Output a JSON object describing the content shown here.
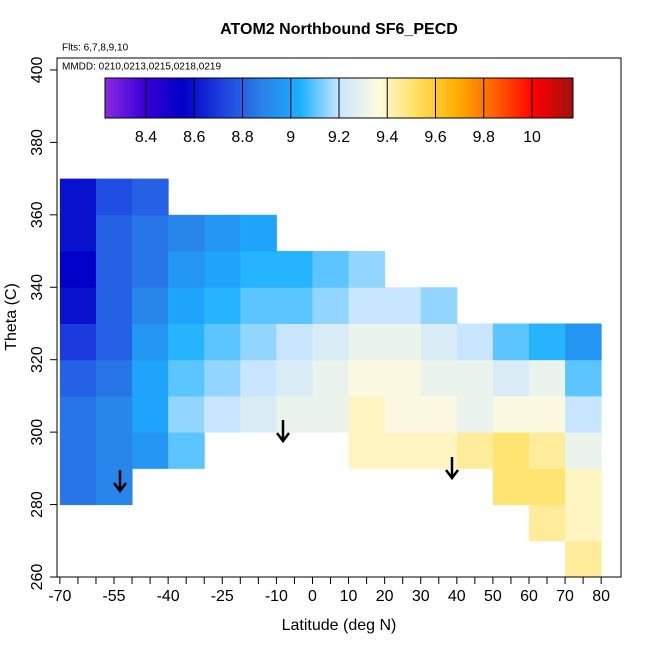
{
  "chart_data": {
    "type": "heatmap",
    "title": "ATOM2 Northbound SF6_PECD",
    "annotations": [
      "Flts: 6,7,8,9,10",
      "MMDD: 0210,0213,0215,0218,0219"
    ],
    "xlabel": "Latitude (deg N)",
    "ylabel": "Theta (C)",
    "xlim": [
      -70.8,
      85.5
    ],
    "ylim": [
      260,
      403.3
    ],
    "xticks": [
      -70,
      -55,
      -40,
      -25,
      -10,
      0,
      10,
      20,
      30,
      40,
      50,
      60,
      70,
      80
    ],
    "xminorticks": [
      -65,
      -60,
      -50,
      -45,
      -35,
      -30,
      -20,
      -15,
      -5,
      5,
      15,
      25,
      35,
      45,
      55,
      65,
      75
    ],
    "yticks": [
      260,
      280,
      300,
      320,
      340,
      360,
      380,
      400
    ],
    "clim": [
      8.23,
      10.17
    ],
    "cticks": [
      8.4,
      8.6,
      8.8,
      9.0,
      9.2,
      9.4,
      9.6,
      9.8,
      10.0
    ],
    "colors": [
      "#8a2be2",
      "#3a00d6",
      "#0000c8",
      "#1e40e0",
      "#2a7fe8",
      "#1ab0ff",
      "#c8e6ff",
      "#fffbe0",
      "#ffe060",
      "#ffb000",
      "#ff6000",
      "#ff0000",
      "#a01010"
    ],
    "x": [
      -65,
      -55,
      -45,
      -35,
      -25,
      -15,
      -5,
      5,
      15,
      25,
      35,
      45,
      55,
      65,
      75
    ],
    "y": [
      265,
      275,
      285,
      295,
      305,
      315,
      325,
      335,
      345,
      355,
      365
    ],
    "z": [
      [
        null,
        null,
        null,
        null,
        null,
        null,
        null,
        null,
        null,
        null,
        null,
        null,
        null,
        null,
        9.45
      ],
      [
        null,
        null,
        null,
        null,
        null,
        null,
        null,
        null,
        null,
        null,
        null,
        null,
        null,
        9.45,
        9.4
      ],
      [
        8.85,
        8.9,
        null,
        null,
        null,
        null,
        null,
        null,
        null,
        null,
        null,
        null,
        9.5,
        9.5,
        9.4
      ],
      [
        8.85,
        8.9,
        8.95,
        9.1,
        null,
        null,
        null,
        null,
        9.4,
        9.4,
        9.4,
        9.45,
        9.5,
        9.45,
        9.3
      ],
      [
        8.85,
        8.9,
        9.0,
        9.15,
        9.2,
        9.25,
        9.3,
        9.3,
        9.4,
        9.35,
        9.35,
        9.3,
        9.35,
        9.35,
        9.2
      ],
      [
        8.8,
        8.85,
        9.0,
        9.1,
        9.15,
        9.2,
        9.25,
        9.3,
        9.35,
        9.35,
        9.3,
        9.3,
        9.25,
        9.3,
        9.1
      ],
      [
        8.7,
        8.8,
        8.95,
        9.05,
        9.1,
        9.15,
        9.2,
        9.25,
        9.3,
        9.3,
        9.25,
        9.2,
        9.1,
        9.05,
        8.95
      ],
      [
        8.6,
        8.8,
        8.9,
        9.0,
        9.05,
        9.1,
        9.1,
        9.15,
        9.2,
        9.2,
        9.15,
        null,
        null,
        null,
        null
      ],
      [
        8.55,
        8.8,
        8.85,
        8.95,
        9.0,
        9.05,
        9.05,
        9.1,
        9.15,
        null,
        null,
        null,
        null,
        null,
        null
      ],
      [
        8.6,
        8.8,
        8.85,
        8.9,
        8.95,
        9.0,
        null,
        null,
        null,
        null,
        null,
        null,
        null,
        null,
        null
      ],
      [
        8.6,
        8.75,
        8.8,
        null,
        null,
        null,
        null,
        null,
        null,
        null,
        null,
        null,
        null,
        null,
        null
      ]
    ]
  }
}
